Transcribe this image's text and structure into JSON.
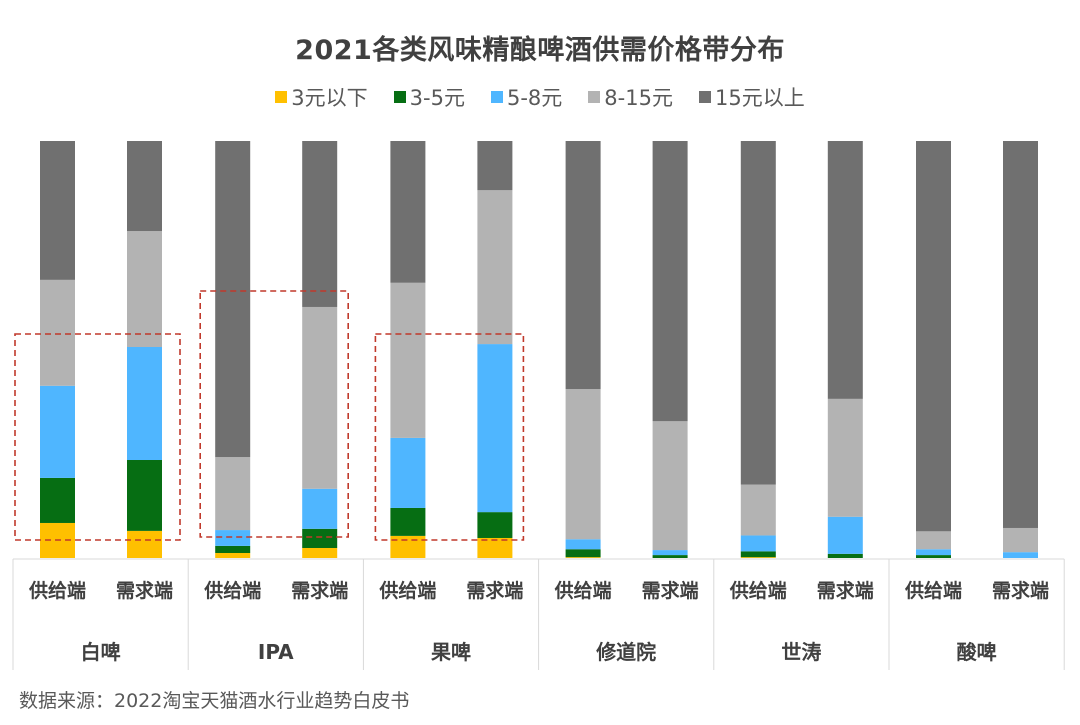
{
  "chart_data": {
    "type": "bar",
    "stacked": true,
    "percent_stacked": true,
    "title": "2021各类风味精酿啤酒供需价格带分布",
    "xlabel": "",
    "ylabel": "",
    "ylim": [
      0,
      100
    ],
    "grid": false,
    "legend_position": "top-center",
    "groups": [
      {
        "label": "白啤",
        "highlighted": true
      },
      {
        "label": "IPA",
        "highlighted": true
      },
      {
        "label": "果啤",
        "highlighted": true
      },
      {
        "label": "修道院",
        "highlighted": false
      },
      {
        "label": "世涛",
        "highlighted": false
      },
      {
        "label": "酸啤",
        "highlighted": false
      }
    ],
    "subcategories": [
      "供给端",
      "需求端"
    ],
    "categories": [
      "白啤-供给端",
      "白啤-需求端",
      "IPA-供给端",
      "IPA-需求端",
      "果啤-供给端",
      "果啤-需求端",
      "修道院-供给端",
      "修道院-需求端",
      "世涛-供给端",
      "世涛-需求端",
      "酸啤-供给端",
      "酸啤-需求端"
    ],
    "series": [
      {
        "name": "3元以下",
        "color": "#FFC000",
        "values": [
          8.4,
          6.5,
          1.2,
          2.4,
          5.3,
          4.8,
          0.2,
          0.0,
          0.2,
          0.0,
          0.0,
          0.0
        ]
      },
      {
        "name": "3-5元",
        "color": "#066E13",
        "values": [
          10.8,
          17.0,
          1.7,
          4.6,
          6.7,
          6.2,
          1.9,
          0.7,
          1.4,
          1.0,
          0.7,
          0.0
        ]
      },
      {
        "name": "5-8元",
        "color": "#4FB6FF",
        "values": [
          22.1,
          27.1,
          3.8,
          9.6,
          16.8,
          40.3,
          2.4,
          1.2,
          3.8,
          8.9,
          1.4,
          1.4
        ]
      },
      {
        "name": "8-15元",
        "color": "#B3B3B3",
        "values": [
          25.4,
          27.8,
          17.5,
          43.6,
          37.2,
          36.9,
          36.0,
          30.9,
          12.2,
          28.3,
          4.3,
          5.8
        ]
      },
      {
        "name": "15元以上",
        "color": "#707070",
        "values": [
          33.3,
          21.6,
          75.8,
          39.8,
          34.0,
          11.8,
          59.5,
          67.2,
          82.3,
          61.9,
          93.6,
          92.8
        ]
      }
    ],
    "annotation_color": "#C0392B",
    "source": "数据来源：2022淘宝天猫酒水行业趋势白皮书"
  }
}
